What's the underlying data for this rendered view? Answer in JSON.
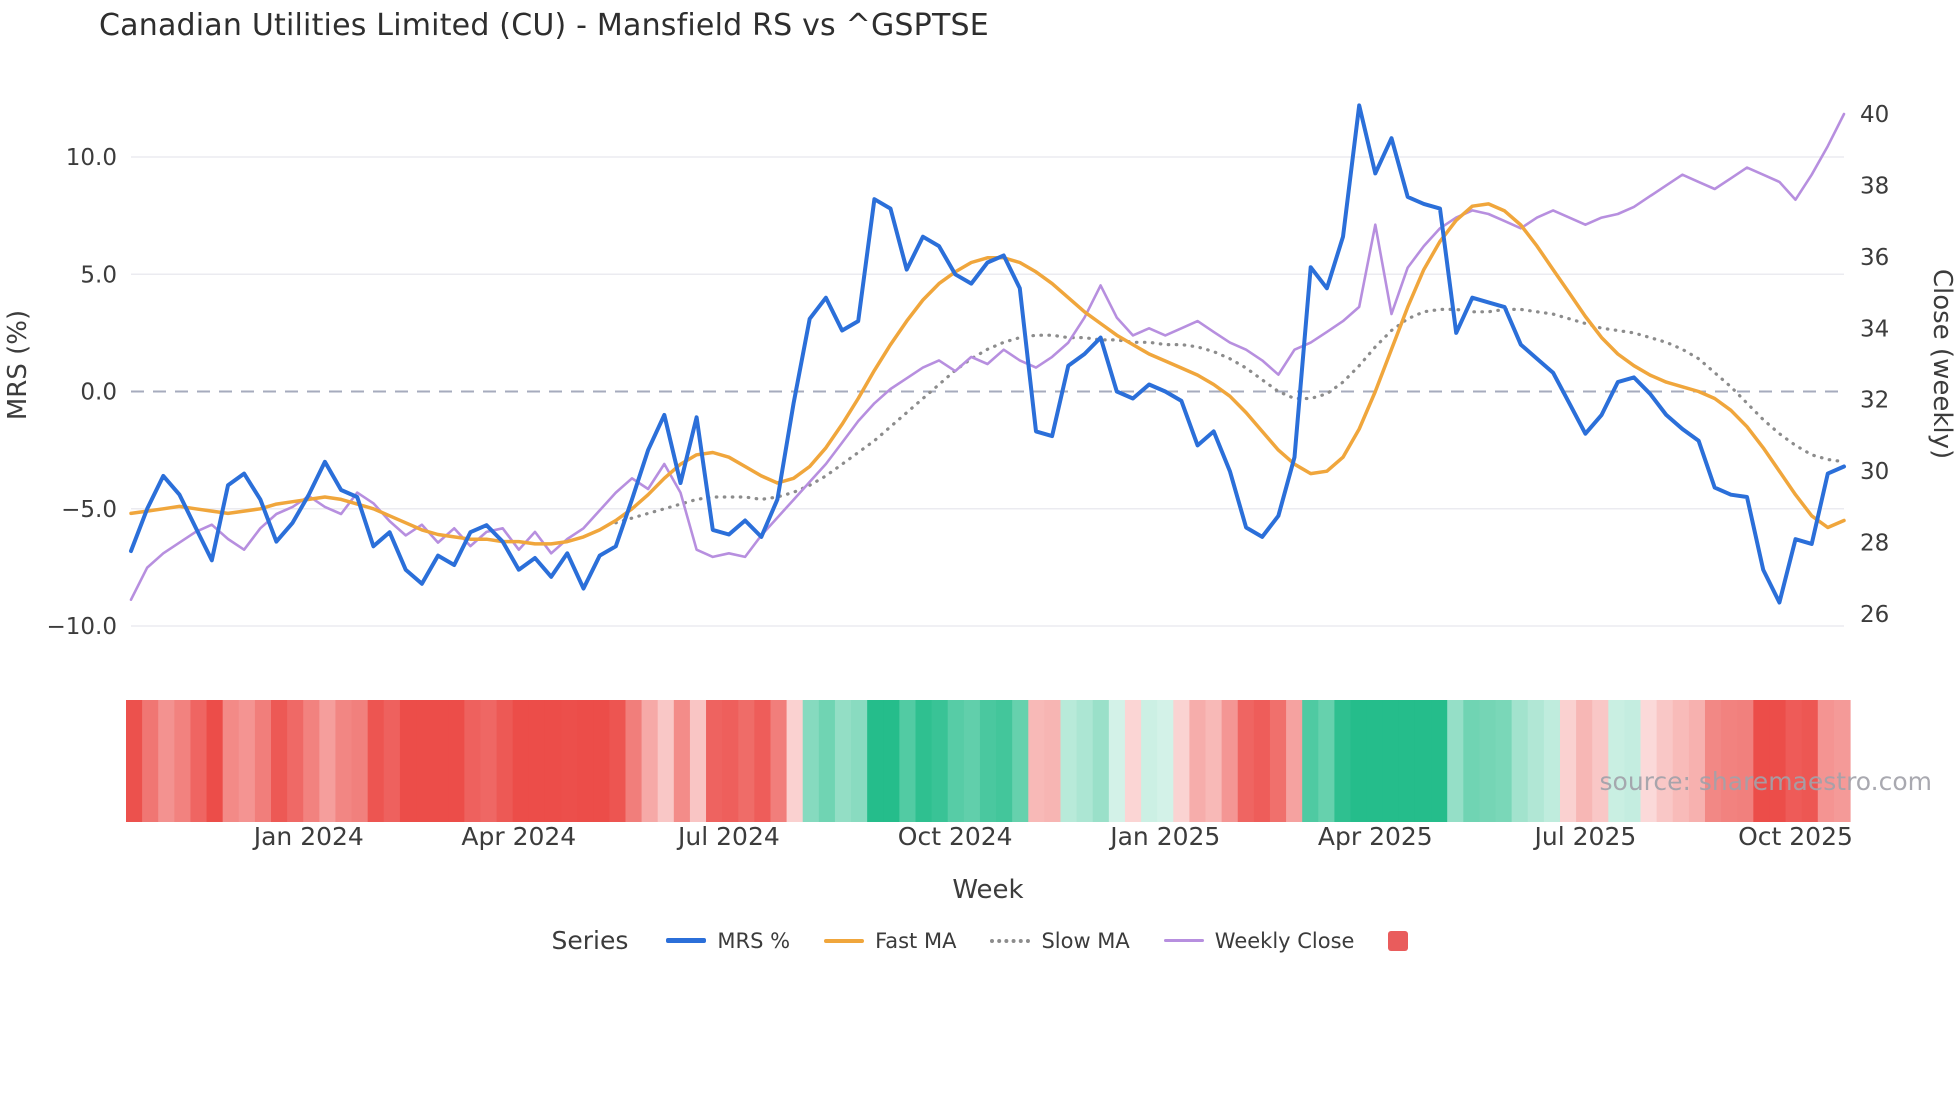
{
  "title": "Canadian Utilities Limited (CU) - Mansfield RS vs ^GSPTSE",
  "source_note": "source: sharemaestro.com",
  "axes": {
    "left_label": "MRS (%)",
    "right_label": "Close (weekly)",
    "x_label": "Week",
    "left_ticks": [
      {
        "label": "10.0",
        "value": 10
      },
      {
        "label": "5.0",
        "value": 5
      },
      {
        "label": "0.0",
        "value": 0
      },
      {
        "label": "−5.0",
        "value": -5
      },
      {
        "label": "−10.0",
        "value": -10
      }
    ],
    "right_ticks": [
      {
        "label": "40",
        "value": 40
      },
      {
        "label": "38",
        "value": 38
      },
      {
        "label": "36",
        "value": 36
      },
      {
        "label": "34",
        "value": 34
      },
      {
        "label": "32",
        "value": 32
      },
      {
        "label": "30",
        "value": 30
      },
      {
        "label": "28",
        "value": 28
      },
      {
        "label": "26",
        "value": 26
      }
    ],
    "x_ticks": [
      {
        "label": "Jan 2024",
        "index": 11
      },
      {
        "label": "Apr 2024",
        "index": 24
      },
      {
        "label": "Jul 2024",
        "index": 37
      },
      {
        "label": "Oct 2024",
        "index": 51
      },
      {
        "label": "Jan 2025",
        "index": 64
      },
      {
        "label": "Apr 2025",
        "index": 77
      },
      {
        "label": "Jul 2025",
        "index": 90
      },
      {
        "label": "Oct 2025",
        "index": 103
      }
    ]
  },
  "legend": {
    "title": "Series",
    "items": [
      {
        "label": "MRS %"
      },
      {
        "label": "Fast MA"
      },
      {
        "label": "Slow MA"
      },
      {
        "label": "Weekly Close"
      },
      {
        "label": ""
      }
    ]
  },
  "chart_data": {
    "type": "line",
    "title": "Canadian Utilities Limited (CU) - Mansfield RS vs ^GSPTSE",
    "xlabel": "Week",
    "ylabel_left": "MRS (%)",
    "ylabel_right": "Close (weekly)",
    "ylim_left": [
      -11.5,
      12.9
    ],
    "ylim_right": [
      24.7,
      40.7
    ],
    "grid": "horizontal",
    "legend_position": "bottom",
    "x": [
      "2023-10-16",
      "2023-10-23",
      "2023-10-30",
      "2023-11-06",
      "2023-11-13",
      "2023-11-20",
      "2023-11-27",
      "2023-12-04",
      "2023-12-11",
      "2023-12-18",
      "2023-12-25",
      "2024-01-01",
      "2024-01-08",
      "2024-01-15",
      "2024-01-22",
      "2024-01-29",
      "2024-02-05",
      "2024-02-12",
      "2024-02-19",
      "2024-02-26",
      "2024-03-04",
      "2024-03-11",
      "2024-03-18",
      "2024-03-25",
      "2024-04-01",
      "2024-04-08",
      "2024-04-15",
      "2024-04-22",
      "2024-04-29",
      "2024-05-06",
      "2024-05-13",
      "2024-05-20",
      "2024-05-27",
      "2024-06-03",
      "2024-06-10",
      "2024-06-17",
      "2024-06-24",
      "2024-07-01",
      "2024-07-08",
      "2024-07-15",
      "2024-07-22",
      "2024-07-29",
      "2024-08-05",
      "2024-08-12",
      "2024-08-19",
      "2024-08-26",
      "2024-09-02",
      "2024-09-09",
      "2024-09-16",
      "2024-09-23",
      "2024-09-30",
      "2024-10-07",
      "2024-10-14",
      "2024-10-21",
      "2024-10-28",
      "2024-11-04",
      "2024-11-11",
      "2024-11-18",
      "2024-11-25",
      "2024-12-02",
      "2024-12-09",
      "2024-12-16",
      "2024-12-23",
      "2024-12-30",
      "2025-01-06",
      "2025-01-13",
      "2025-01-20",
      "2025-01-27",
      "2025-02-03",
      "2025-02-10",
      "2025-02-17",
      "2025-02-24",
      "2025-03-03",
      "2025-03-10",
      "2025-03-17",
      "2025-03-24",
      "2025-03-31",
      "2025-04-07",
      "2025-04-14",
      "2025-04-21",
      "2025-04-28",
      "2025-05-05",
      "2025-05-12",
      "2025-05-19",
      "2025-05-26",
      "2025-06-02",
      "2025-06-09",
      "2025-06-16",
      "2025-06-23",
      "2025-06-30",
      "2025-07-07",
      "2025-07-14",
      "2025-07-21",
      "2025-07-28",
      "2025-08-04",
      "2025-08-11",
      "2025-08-18",
      "2025-08-25",
      "2025-09-01",
      "2025-09-08",
      "2025-09-15",
      "2025-09-22",
      "2025-09-29",
      "2025-10-06",
      "2025-10-13",
      "2025-10-20",
      "2025-10-27"
    ],
    "series": [
      {
        "name": "MRS %",
        "axis": "left",
        "color": "#2b6fd9",
        "line_style": "solid",
        "values": [
          -6.8,
          -5.0,
          -3.6,
          -4.4,
          -5.8,
          -7.2,
          -4.0,
          -3.5,
          -4.6,
          -6.4,
          -5.6,
          -4.4,
          -3.0,
          -4.2,
          -4.5,
          -6.6,
          -6.0,
          -7.6,
          -8.2,
          -7.0,
          -7.4,
          -6.0,
          -5.7,
          -6.4,
          -7.6,
          -7.1,
          -7.9,
          -6.9,
          -8.4,
          -7.0,
          -6.6,
          -4.6,
          -2.5,
          -1.0,
          -3.9,
          -1.1,
          -5.9,
          -6.1,
          -5.5,
          -6.2,
          -4.6,
          -0.5,
          3.1,
          4.0,
          2.6,
          3.0,
          8.2,
          7.8,
          5.2,
          6.6,
          6.2,
          5.0,
          4.6,
          5.5,
          5.8,
          4.4,
          -1.7,
          -1.9,
          1.1,
          1.6,
          2.3,
          0.0,
          -0.3,
          0.3,
          0.0,
          -0.4,
          -2.3,
          -1.7,
          -3.4,
          -5.8,
          -6.2,
          -5.3,
          -2.8,
          5.3,
          4.4,
          6.6,
          12.2,
          9.3,
          10.8,
          8.3,
          8.0,
          7.8,
          2.5,
          4.0,
          3.8,
          3.6,
          2.0,
          1.4,
          0.8,
          -0.5,
          -1.8,
          -1.0,
          0.4,
          0.6,
          -0.1,
          -1.0,
          -1.6,
          -2.1,
          -4.1,
          -4.4,
          -4.5,
          -7.6,
          -9.0,
          -6.3,
          -6.5,
          -3.5,
          -3.2
        ]
      },
      {
        "name": "Fast MA",
        "axis": "left",
        "color": "#f0a63c",
        "line_style": "solid",
        "values": [
          -5.2,
          -5.1,
          -5.0,
          -4.9,
          -5.0,
          -5.1,
          -5.2,
          -5.1,
          -5.0,
          -4.8,
          -4.7,
          -4.6,
          -4.5,
          -4.6,
          -4.8,
          -5.0,
          -5.3,
          -5.6,
          -5.9,
          -6.1,
          -6.2,
          -6.3,
          -6.3,
          -6.4,
          -6.4,
          -6.5,
          -6.5,
          -6.4,
          -6.2,
          -5.9,
          -5.5,
          -5.0,
          -4.4,
          -3.7,
          -3.1,
          -2.7,
          -2.6,
          -2.8,
          -3.2,
          -3.6,
          -3.9,
          -3.7,
          -3.2,
          -2.4,
          -1.4,
          -0.3,
          0.9,
          2.0,
          3.0,
          3.9,
          4.6,
          5.1,
          5.5,
          5.7,
          5.7,
          5.5,
          5.1,
          4.6,
          4.0,
          3.4,
          2.9,
          2.4,
          2.0,
          1.6,
          1.3,
          1.0,
          0.7,
          0.3,
          -0.2,
          -0.9,
          -1.7,
          -2.5,
          -3.1,
          -3.5,
          -3.4,
          -2.8,
          -1.6,
          0.0,
          1.8,
          3.6,
          5.2,
          6.4,
          7.3,
          7.9,
          8.0,
          7.7,
          7.1,
          6.2,
          5.2,
          4.2,
          3.2,
          2.3,
          1.6,
          1.1,
          0.7,
          0.4,
          0.2,
          0.0,
          -0.3,
          -0.8,
          -1.5,
          -2.4,
          -3.4,
          -4.4,
          -5.3,
          -5.8,
          -5.5
        ]
      },
      {
        "name": "Slow MA",
        "axis": "left",
        "color": "#8c8c8c",
        "line_style": "dotted",
        "values": [
          null,
          null,
          null,
          null,
          null,
          null,
          null,
          null,
          null,
          null,
          null,
          null,
          null,
          null,
          null,
          null,
          null,
          null,
          null,
          null,
          null,
          null,
          null,
          null,
          null,
          null,
          null,
          null,
          null,
          null,
          -5.6,
          -5.4,
          -5.2,
          -5.0,
          -4.8,
          -4.6,
          -4.5,
          -4.5,
          -4.5,
          -4.6,
          -4.5,
          -4.3,
          -4.0,
          -3.6,
          -3.1,
          -2.6,
          -2.1,
          -1.5,
          -0.9,
          -0.3,
          0.3,
          0.9,
          1.4,
          1.8,
          2.1,
          2.3,
          2.4,
          2.4,
          2.3,
          2.3,
          2.2,
          2.2,
          2.1,
          2.1,
          2.0,
          2.0,
          1.9,
          1.7,
          1.4,
          1.0,
          0.5,
          0.0,
          -0.3,
          -0.3,
          -0.1,
          0.4,
          1.1,
          1.9,
          2.6,
          3.1,
          3.4,
          3.5,
          3.5,
          3.4,
          3.4,
          3.5,
          3.5,
          3.4,
          3.3,
          3.1,
          2.9,
          2.7,
          2.6,
          2.5,
          2.3,
          2.1,
          1.8,
          1.4,
          0.8,
          0.2,
          -0.5,
          -1.2,
          -1.8,
          -2.3,
          -2.7,
          -2.9,
          -3.0
        ]
      },
      {
        "name": "Weekly Close",
        "axis": "right",
        "color": "#b78fdf",
        "line_style": "solid",
        "values": [
          26.4,
          27.3,
          27.7,
          28.0,
          28.3,
          28.5,
          28.1,
          27.8,
          28.4,
          28.8,
          29.0,
          29.3,
          29.0,
          28.8,
          29.4,
          29.1,
          28.6,
          28.2,
          28.5,
          28.0,
          28.4,
          27.9,
          28.3,
          28.4,
          27.8,
          28.3,
          27.7,
          28.1,
          28.4,
          28.9,
          29.4,
          29.8,
          29.5,
          30.2,
          29.4,
          27.8,
          27.6,
          27.7,
          27.6,
          28.2,
          28.7,
          29.2,
          29.7,
          30.2,
          30.8,
          31.4,
          31.9,
          32.3,
          32.6,
          32.9,
          33.1,
          32.8,
          33.2,
          33.0,
          33.4,
          33.1,
          32.9,
          33.2,
          33.6,
          34.3,
          35.2,
          34.3,
          33.8,
          34.0,
          33.8,
          34.0,
          34.2,
          33.9,
          33.6,
          33.4,
          33.1,
          32.7,
          33.4,
          33.6,
          33.9,
          34.2,
          34.6,
          36.9,
          34.4,
          35.7,
          36.3,
          36.8,
          37.1,
          37.3,
          37.2,
          37.0,
          36.8,
          37.1,
          37.3,
          37.1,
          36.9,
          37.1,
          37.2,
          37.4,
          37.7,
          38.0,
          38.3,
          38.1,
          37.9,
          38.2,
          38.5,
          38.3,
          38.1,
          37.6,
          38.3,
          39.1,
          40.0
        ]
      }
    ],
    "heatmap": {
      "based_on": "MRS %",
      "negative_color": "#ec4d49",
      "positive_color": "#25bd8b",
      "legend_swatch_color": "#e95c5c"
    }
  }
}
